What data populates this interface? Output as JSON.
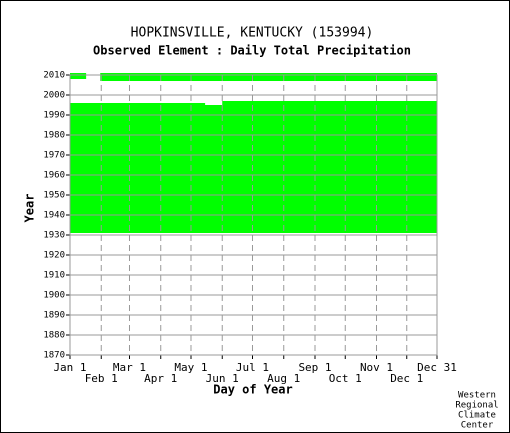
{
  "chart_data": {
    "type": "coverage",
    "title": "HOPKINSVILLE, KENTUCKY   (153994)",
    "subtitle": "Observed Element : Daily Total Precipitation",
    "x_label": "Day of Year",
    "y_label": "Year",
    "footer": [
      "Western",
      "Regional",
      "Climate",
      "Center"
    ],
    "color": "#00ff00",
    "xlim": [
      1,
      365
    ],
    "xticks": [
      {
        "value": 1,
        "label": "Jan 1"
      },
      {
        "value": 32,
        "label": "Feb 1"
      },
      {
        "value": 60,
        "label": "Mar 1"
      },
      {
        "value": 91,
        "label": "Apr 1"
      },
      {
        "value": 121,
        "label": "May 1"
      },
      {
        "value": 152,
        "label": "Jun 1"
      },
      {
        "value": 182,
        "label": "Jul 1"
      },
      {
        "value": 213,
        "label": "Aug 1"
      },
      {
        "value": 244,
        "label": "Sep 1"
      },
      {
        "value": 274,
        "label": "Oct 1"
      },
      {
        "value": 305,
        "label": "Nov 1"
      },
      {
        "value": 335,
        "label": "Dec 1"
      },
      {
        "value": 365,
        "label": "Dec 31"
      }
    ],
    "ylim": [
      1870,
      2010
    ],
    "yticks": [
      1870,
      1880,
      1890,
      1900,
      1910,
      1920,
      1930,
      1940,
      1950,
      1960,
      1970,
      1980,
      1990,
      2000,
      2010
    ],
    "grid": true,
    "blocks": [
      {
        "years": [
          1931,
          1994
        ],
        "days": [
          1,
          365
        ]
      },
      {
        "years": [
          1994,
          1995
        ],
        "days": [
          1,
          135
        ]
      },
      {
        "years": [
          1995,
          1996
        ],
        "days": [
          152,
          365
        ]
      },
      {
        "years": [
          2007,
          2010
        ],
        "days": [
          31,
          365
        ]
      },
      {
        "years": [
          2008,
          2010
        ],
        "days": [
          1,
          17
        ]
      }
    ]
  }
}
